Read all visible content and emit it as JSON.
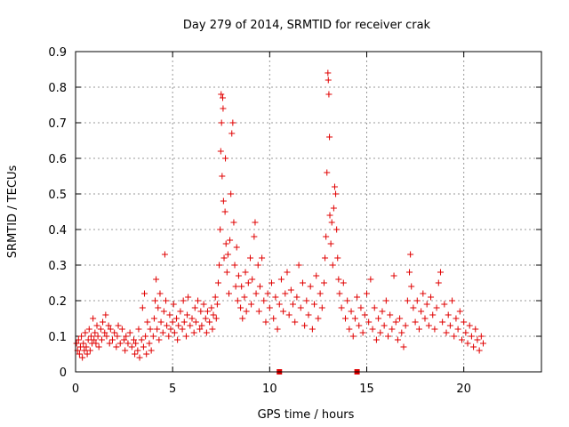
{
  "chart_data": {
    "type": "scatter",
    "title": "Day 279 of 2014, SRMTID for receiver crak",
    "xlabel": "GPS time / hours",
    "ylabel": "SRMTID / TECUs",
    "xlim": [
      0,
      24
    ],
    "ylim": [
      0,
      0.9
    ],
    "xticks": [
      0,
      5,
      10,
      15,
      20
    ],
    "yticks": [
      0,
      0.1,
      0.2,
      0.3,
      0.4,
      0.5,
      0.6,
      0.7,
      0.8,
      0.9
    ],
    "grid": true,
    "marker": "+",
    "color": "#e00000",
    "series": [
      {
        "name": "SRMTID",
        "points": [
          [
            0.05,
            0.08
          ],
          [
            0.1,
            0.06
          ],
          [
            0.15,
            0.09
          ],
          [
            0.2,
            0.05
          ],
          [
            0.25,
            0.07
          ],
          [
            0.3,
            0.1
          ],
          [
            0.35,
            0.04
          ],
          [
            0.4,
            0.08
          ],
          [
            0.45,
            0.06
          ],
          [
            0.5,
            0.11
          ],
          [
            0.55,
            0.07
          ],
          [
            0.6,
            0.05
          ],
          [
            0.65,
            0.09
          ],
          [
            0.7,
            0.12
          ],
          [
            0.75,
            0.06
          ],
          [
            0.8,
            0.1
          ],
          [
            0.85,
            0.08
          ],
          [
            0.9,
            0.15
          ],
          [
            0.95,
            0.09
          ],
          [
            1.0,
            0.11
          ],
          [
            1.05,
            0.08
          ],
          [
            1.1,
            0.13
          ],
          [
            1.15,
            0.1
          ],
          [
            1.2,
            0.07
          ],
          [
            1.3,
            0.12
          ],
          [
            1.35,
            0.09
          ],
          [
            1.4,
            0.14
          ],
          [
            1.5,
            0.11
          ],
          [
            1.55,
            0.16
          ],
          [
            1.6,
            0.1
          ],
          [
            1.7,
            0.13
          ],
          [
            1.75,
            0.08
          ],
          [
            1.8,
            0.12
          ],
          [
            1.9,
            0.09
          ],
          [
            2.0,
            0.11
          ],
          [
            2.1,
            0.07
          ],
          [
            2.15,
            0.1
          ],
          [
            2.2,
            0.13
          ],
          [
            2.3,
            0.08
          ],
          [
            2.4,
            0.12
          ],
          [
            2.5,
            0.09
          ],
          [
            2.55,
            0.06
          ],
          [
            2.6,
            0.1
          ],
          [
            2.7,
            0.08
          ],
          [
            2.8,
            0.11
          ],
          [
            2.9,
            0.07
          ],
          [
            3.0,
            0.09
          ],
          [
            3.05,
            0.05
          ],
          [
            3.1,
            0.08
          ],
          [
            3.2,
            0.06
          ],
          [
            3.25,
            0.12
          ],
          [
            3.3,
            0.04
          ],
          [
            3.4,
            0.09
          ],
          [
            3.45,
            0.18
          ],
          [
            3.5,
            0.07
          ],
          [
            3.55,
            0.22
          ],
          [
            3.6,
            0.1
          ],
          [
            3.65,
            0.05
          ],
          [
            3.7,
            0.14
          ],
          [
            3.8,
            0.08
          ],
          [
            3.85,
            0.12
          ],
          [
            3.9,
            0.06
          ],
          [
            4.0,
            0.1
          ],
          [
            4.05,
            0.15
          ],
          [
            4.1,
            0.2
          ],
          [
            4.15,
            0.26
          ],
          [
            4.2,
            0.12
          ],
          [
            4.25,
            0.18
          ],
          [
            4.3,
            0.09
          ],
          [
            4.35,
            0.22
          ],
          [
            4.4,
            0.14
          ],
          [
            4.5,
            0.11
          ],
          [
            4.55,
            0.17
          ],
          [
            4.6,
            0.33
          ],
          [
            4.65,
            0.2
          ],
          [
            4.7,
            0.13
          ],
          [
            4.8,
            0.1
          ],
          [
            4.85,
            0.16
          ],
          [
            4.9,
            0.12
          ],
          [
            5.0,
            0.14
          ],
          [
            5.05,
            0.19
          ],
          [
            5.1,
            0.11
          ],
          [
            5.2,
            0.15
          ],
          [
            5.25,
            0.09
          ],
          [
            5.3,
            0.13
          ],
          [
            5.4,
            0.17
          ],
          [
            5.5,
            0.12
          ],
          [
            5.55,
            0.2
          ],
          [
            5.6,
            0.14
          ],
          [
            5.7,
            0.1
          ],
          [
            5.75,
            0.16
          ],
          [
            5.8,
            0.21
          ],
          [
            5.9,
            0.13
          ],
          [
            6.0,
            0.15
          ],
          [
            6.1,
            0.11
          ],
          [
            6.15,
            0.18
          ],
          [
            6.2,
            0.14
          ],
          [
            6.3,
            0.2
          ],
          [
            6.4,
            0.12
          ],
          [
            6.45,
            0.17
          ],
          [
            6.5,
            0.13
          ],
          [
            6.6,
            0.19
          ],
          [
            6.7,
            0.15
          ],
          [
            6.75,
            0.11
          ],
          [
            6.8,
            0.17
          ],
          [
            6.9,
            0.14
          ],
          [
            7.0,
            0.18
          ],
          [
            7.05,
            0.12
          ],
          [
            7.1,
            0.16
          ],
          [
            7.2,
            0.21
          ],
          [
            7.25,
            0.15
          ],
          [
            7.3,
            0.19
          ],
          [
            7.35,
            0.25
          ],
          [
            7.4,
            0.3
          ],
          [
            7.45,
            0.4
          ],
          [
            7.48,
            0.62
          ],
          [
            7.5,
            0.78
          ],
          [
            7.52,
            0.7
          ],
          [
            7.55,
            0.55
          ],
          [
            7.58,
            0.77
          ],
          [
            7.6,
            0.74
          ],
          [
            7.62,
            0.48
          ],
          [
            7.65,
            0.32
          ],
          [
            7.7,
            0.45
          ],
          [
            7.72,
            0.6
          ],
          [
            7.75,
            0.36
          ],
          [
            7.8,
            0.28
          ],
          [
            7.85,
            0.33
          ],
          [
            7.9,
            0.22
          ],
          [
            7.95,
            0.37
          ],
          [
            8.0,
            0.5
          ],
          [
            8.05,
            0.67
          ],
          [
            8.1,
            0.7
          ],
          [
            8.15,
            0.42
          ],
          [
            8.2,
            0.3
          ],
          [
            8.25,
            0.24
          ],
          [
            8.3,
            0.35
          ],
          [
            8.35,
            0.2
          ],
          [
            8.4,
            0.27
          ],
          [
            8.5,
            0.18
          ],
          [
            8.55,
            0.24
          ],
          [
            8.6,
            0.15
          ],
          [
            8.7,
            0.21
          ],
          [
            8.75,
            0.28
          ],
          [
            8.8,
            0.17
          ],
          [
            8.9,
            0.25
          ],
          [
            9.0,
            0.32
          ],
          [
            9.05,
            0.19
          ],
          [
            9.1,
            0.26
          ],
          [
            9.2,
            0.38
          ],
          [
            9.25,
            0.42
          ],
          [
            9.3,
            0.22
          ],
          [
            9.4,
            0.3
          ],
          [
            9.45,
            0.17
          ],
          [
            9.5,
            0.24
          ],
          [
            9.6,
            0.32
          ],
          [
            9.7,
            0.2
          ],
          [
            9.8,
            0.14
          ],
          [
            9.9,
            0.22
          ],
          [
            10.0,
            0.18
          ],
          [
            10.1,
            0.25
          ],
          [
            10.2,
            0.15
          ],
          [
            10.3,
            0.21
          ],
          [
            10.4,
            0.12
          ],
          [
            10.5,
            0.19
          ],
          [
            10.6,
            0.26
          ],
          [
            10.7,
            0.17
          ],
          [
            10.8,
            0.22
          ],
          [
            10.9,
            0.28
          ],
          [
            11.0,
            0.16
          ],
          [
            11.1,
            0.23
          ],
          [
            11.2,
            0.19
          ],
          [
            11.3,
            0.14
          ],
          [
            11.4,
            0.21
          ],
          [
            11.5,
            0.3
          ],
          [
            11.6,
            0.18
          ],
          [
            11.7,
            0.25
          ],
          [
            11.8,
            0.13
          ],
          [
            11.9,
            0.2
          ],
          [
            12.0,
            0.16
          ],
          [
            12.1,
            0.24
          ],
          [
            12.2,
            0.12
          ],
          [
            12.3,
            0.19
          ],
          [
            12.4,
            0.27
          ],
          [
            12.5,
            0.15
          ],
          [
            12.6,
            0.22
          ],
          [
            12.7,
            0.18
          ],
          [
            12.8,
            0.25
          ],
          [
            12.85,
            0.32
          ],
          [
            12.9,
            0.38
          ],
          [
            12.95,
            0.56
          ],
          [
            13.0,
            0.84
          ],
          [
            13.02,
            0.82
          ],
          [
            13.05,
            0.78
          ],
          [
            13.08,
            0.66
          ],
          [
            13.1,
            0.44
          ],
          [
            13.15,
            0.36
          ],
          [
            13.2,
            0.42
          ],
          [
            13.25,
            0.3
          ],
          [
            13.3,
            0.46
          ],
          [
            13.35,
            0.52
          ],
          [
            13.4,
            0.5
          ],
          [
            13.45,
            0.4
          ],
          [
            13.5,
            0.32
          ],
          [
            13.55,
            0.26
          ],
          [
            13.6,
            0.22
          ],
          [
            13.7,
            0.18
          ],
          [
            13.8,
            0.25
          ],
          [
            13.9,
            0.15
          ],
          [
            14.0,
            0.2
          ],
          [
            14.1,
            0.12
          ],
          [
            14.2,
            0.17
          ],
          [
            14.3,
            0.1
          ],
          [
            14.4,
            0.15
          ],
          [
            14.5,
            0.21
          ],
          [
            14.6,
            0.13
          ],
          [
            14.7,
            0.18
          ],
          [
            14.8,
            0.11
          ],
          [
            14.9,
            0.16
          ],
          [
            15.0,
            0.22
          ],
          [
            15.1,
            0.14
          ],
          [
            15.2,
            0.26
          ],
          [
            15.3,
            0.12
          ],
          [
            15.4,
            0.18
          ],
          [
            15.5,
            0.09
          ],
          [
            15.6,
            0.15
          ],
          [
            15.7,
            0.11
          ],
          [
            15.8,
            0.17
          ],
          [
            15.9,
            0.13
          ],
          [
            16.0,
            0.2
          ],
          [
            16.1,
            0.1
          ],
          [
            16.2,
            0.16
          ],
          [
            16.3,
            0.12
          ],
          [
            16.4,
            0.27
          ],
          [
            16.5,
            0.14
          ],
          [
            16.6,
            0.09
          ],
          [
            16.7,
            0.15
          ],
          [
            16.8,
            0.11
          ],
          [
            16.9,
            0.07
          ],
          [
            17.0,
            0.13
          ],
          [
            17.1,
            0.2
          ],
          [
            17.2,
            0.28
          ],
          [
            17.25,
            0.33
          ],
          [
            17.3,
            0.24
          ],
          [
            17.4,
            0.18
          ],
          [
            17.5,
            0.14
          ],
          [
            17.6,
            0.2
          ],
          [
            17.7,
            0.12
          ],
          [
            17.8,
            0.17
          ],
          [
            17.9,
            0.22
          ],
          [
            18.0,
            0.15
          ],
          [
            18.1,
            0.19
          ],
          [
            18.2,
            0.13
          ],
          [
            18.3,
            0.21
          ],
          [
            18.4,
            0.16
          ],
          [
            18.5,
            0.12
          ],
          [
            18.6,
            0.18
          ],
          [
            18.7,
            0.25
          ],
          [
            18.8,
            0.28
          ],
          [
            18.9,
            0.14
          ],
          [
            19.0,
            0.19
          ],
          [
            19.1,
            0.11
          ],
          [
            19.2,
            0.16
          ],
          [
            19.3,
            0.13
          ],
          [
            19.4,
            0.2
          ],
          [
            19.5,
            0.1
          ],
          [
            19.6,
            0.15
          ],
          [
            19.7,
            0.12
          ],
          [
            19.8,
            0.17
          ],
          [
            19.9,
            0.09
          ],
          [
            20.0,
            0.14
          ],
          [
            20.1,
            0.11
          ],
          [
            20.2,
            0.08
          ],
          [
            20.3,
            0.13
          ],
          [
            20.4,
            0.1
          ],
          [
            20.5,
            0.07
          ],
          [
            20.6,
            0.12
          ],
          [
            20.7,
            0.09
          ],
          [
            20.8,
            0.06
          ],
          [
            20.9,
            0.1
          ],
          [
            21.0,
            0.08
          ]
        ]
      }
    ],
    "gap_markers": [
      10.5,
      14.5
    ]
  }
}
